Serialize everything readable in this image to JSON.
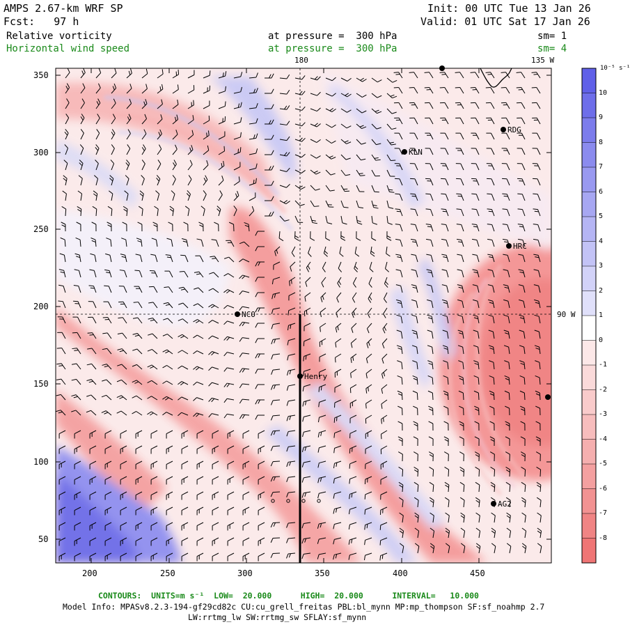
{
  "header": {
    "title": "AMPS 2.67-km WRF SP",
    "forecast": "Fcst:   97 h",
    "init": "Init: 00 UTC Tue 13 Jan 26",
    "valid": "Valid: 01 UTC Sat 17 Jan 26",
    "field1": {
      "name": "Relative vorticity",
      "level": "at pressure =  300 hPa",
      "sm": "sm= 1"
    },
    "field2": {
      "name": "Horizontal wind speed",
      "level": "at pressure =  300 hPa",
      "sm": "sm= 4"
    }
  },
  "colors": {
    "positive": "#5a5ae8",
    "negative": "#f06a6a",
    "neutral": "#ffffff",
    "green_text": "#1a8a1a"
  },
  "map": {
    "x_ticks": [
      "200",
      "250",
      "300",
      "350",
      "400",
      "450"
    ],
    "y_ticks": [
      "50",
      "100",
      "150",
      "200",
      "250",
      "300",
      "350"
    ],
    "meridian_labels": {
      "top": "180",
      "top_right": "135 W",
      "right": "90 W"
    },
    "stations": [
      {
        "name": "NCO"
      },
      {
        "name": "Henry"
      },
      {
        "name": "KLN"
      },
      {
        "name": "RDG"
      },
      {
        "name": "HRC"
      },
      {
        "name": "AG2"
      },
      {
        "name": ""
      },
      {
        "name": ""
      }
    ]
  },
  "colorbar": {
    "unit": "10⁻⁵ s⁻¹",
    "labels": [
      "10",
      "9",
      "8",
      "7",
      "6",
      "5",
      "4",
      "3",
      "2",
      "1",
      "0",
      "-1",
      "-2",
      "-3",
      "-4",
      "-5",
      "-6",
      "-7",
      "-8"
    ]
  },
  "footer": {
    "contours": "CONTOURS:  UNITS=m s⁻¹  LOW=  20.000      HIGH=  20.000      INTERVAL=   10.000",
    "model_info": "Model Info: MPASv8.2.3-194-gf29cd82c CU:cu_grell_freitas PBL:bl_mynn MP:mp_thompson SF:sf_noahmp 2.7",
    "physics": "LW:rrtmg_lw SW:rrtmg_sw SFLAY:sf_mynn"
  }
}
